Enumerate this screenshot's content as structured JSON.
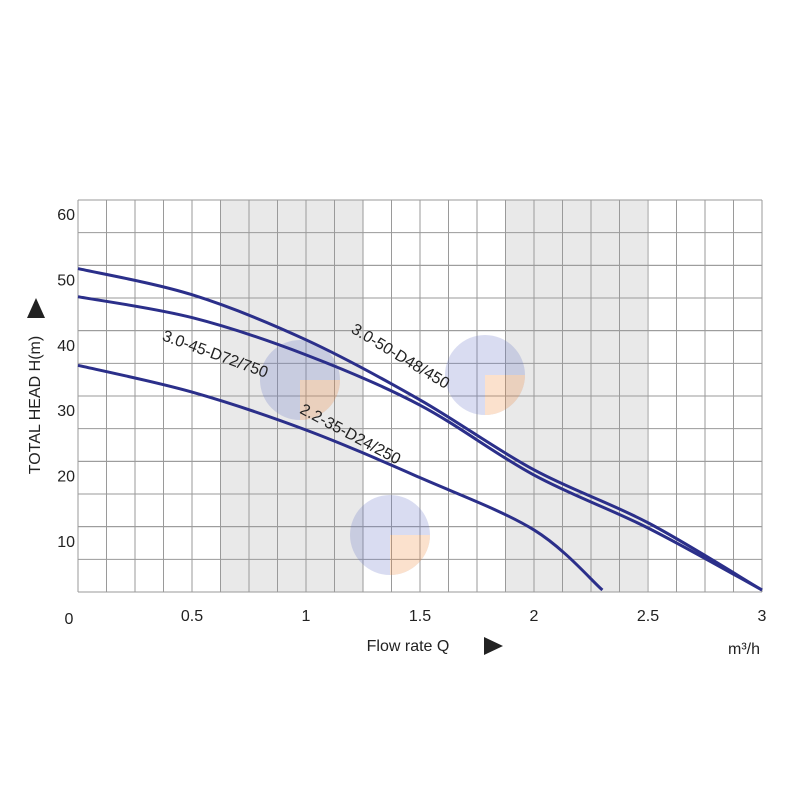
{
  "chart_data": {
    "type": "line",
    "x_label": "Flow rate Q",
    "x_unit": "m³/h",
    "y_label": "TOTAL HEAD H(m)",
    "xlim": [
      0,
      3
    ],
    "xticks": [
      0.5,
      1,
      1.5,
      2,
      2.5,
      3
    ],
    "ylim": [
      0,
      60
    ],
    "yticks": [
      0,
      10,
      20,
      30,
      40,
      50,
      60
    ],
    "grid": true,
    "series": [
      {
        "name": "3.0-50-D48/450",
        "color": "#2b2f8a",
        "x": [
          0,
          0.5,
          1,
          1.5,
          2,
          2.5,
          3
        ],
        "values": [
          49.5,
          45.5,
          38.6,
          29.4,
          18.7,
          10.6,
          0.3
        ]
      },
      {
        "name": "3.0-45-D72/750",
        "color": "#2b2f8a",
        "x": [
          0,
          0.5,
          1,
          1.5,
          2,
          2.5,
          3
        ],
        "values": [
          45.2,
          42,
          36.3,
          28.6,
          17.9,
          9.8,
          0.3
        ]
      },
      {
        "name": "2.2-35-D24/250",
        "color": "#2b2f8a",
        "x": [
          0,
          0.5,
          1,
          1.5,
          2,
          2.3
        ],
        "values": [
          34.7,
          30.6,
          24.8,
          17.5,
          9.5,
          0.3
        ]
      }
    ]
  }
}
